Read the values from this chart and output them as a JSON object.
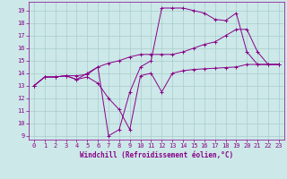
{
  "xlabel": "Windchill (Refroidissement éolien,°C)",
  "bg_color": "#cce8e8",
  "line_color": "#880088",
  "grid_color": "#aacccc",
  "xlim": [
    -0.5,
    23.5
  ],
  "ylim": [
    8.7,
    19.7
  ],
  "yticks": [
    9,
    10,
    11,
    12,
    13,
    14,
    15,
    16,
    17,
    18,
    19
  ],
  "xticks": [
    0,
    1,
    2,
    3,
    4,
    5,
    6,
    7,
    8,
    9,
    10,
    11,
    12,
    13,
    14,
    15,
    16,
    17,
    18,
    19,
    20,
    21,
    22,
    23
  ],
  "series": [
    {
      "x": [
        0,
        1,
        2,
        3,
        4,
        5,
        6,
        7,
        8,
        9,
        10,
        11,
        12,
        13,
        14,
        15,
        16,
        17,
        18,
        19,
        20,
        21,
        22,
        23
      ],
      "y": [
        13.0,
        13.7,
        13.7,
        13.8,
        13.5,
        13.7,
        13.2,
        12.0,
        11.1,
        9.5,
        13.8,
        14.0,
        12.5,
        14.0,
        14.2,
        14.3,
        14.35,
        14.4,
        14.45,
        14.5,
        14.7,
        14.7,
        14.7,
        14.7
      ]
    },
    {
      "x": [
        0,
        1,
        2,
        3,
        4,
        5,
        6,
        7,
        8,
        9,
        10,
        11,
        12,
        13,
        14,
        15,
        16,
        17,
        18,
        19,
        20,
        21,
        22,
        23
      ],
      "y": [
        13.0,
        13.7,
        13.7,
        13.8,
        13.8,
        13.9,
        14.5,
        14.8,
        15.0,
        15.3,
        15.5,
        15.5,
        15.5,
        15.5,
        15.7,
        16.0,
        16.3,
        16.5,
        17.0,
        17.5,
        17.5,
        15.7,
        14.7,
        14.7
      ]
    },
    {
      "x": [
        0,
        1,
        2,
        3,
        4,
        5,
        6,
        7,
        8,
        9,
        10,
        11,
        12,
        13,
        14,
        15,
        16,
        17,
        18,
        19,
        20,
        21,
        22,
        23
      ],
      "y": [
        13.0,
        13.7,
        13.7,
        13.8,
        13.5,
        14.0,
        14.5,
        9.0,
        9.5,
        12.5,
        14.5,
        15.0,
        19.2,
        19.2,
        19.2,
        19.0,
        18.8,
        18.3,
        18.2,
        18.8,
        15.7,
        14.7,
        14.7,
        14.7
      ]
    }
  ]
}
